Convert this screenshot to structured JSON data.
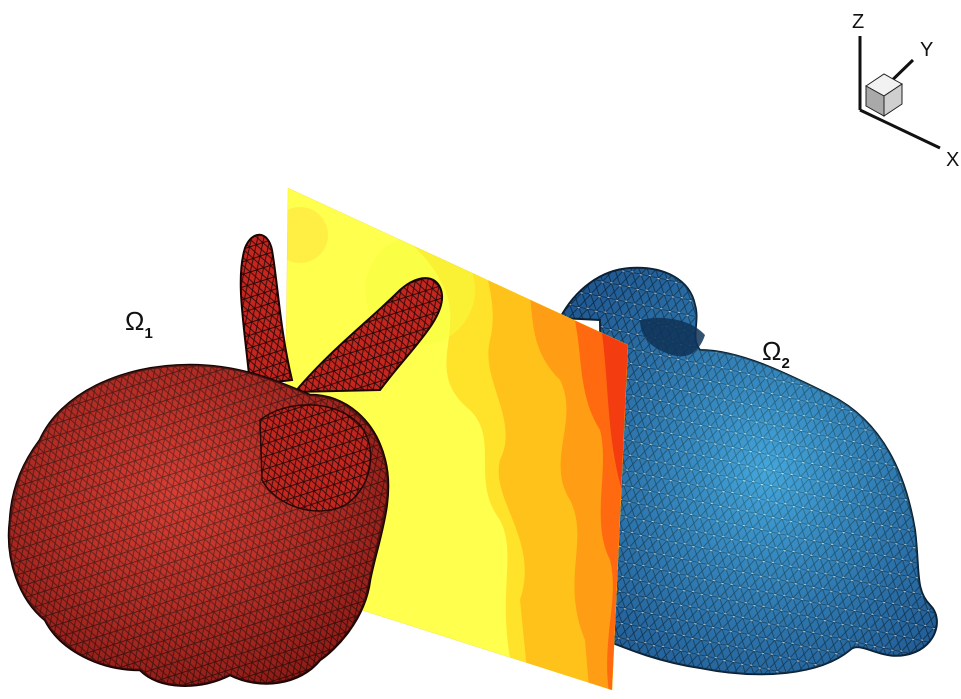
{
  "axes": {
    "x": "X",
    "y": "Y",
    "z": "Z"
  },
  "domains": [
    {
      "symbol": "Ω",
      "subscript": "1",
      "color": "#c82a25"
    },
    {
      "symbol": "Ω",
      "subscript": "2",
      "color": "#2f7ec8"
    }
  ],
  "plane_colors": [
    "#ffff4d",
    "#ffe22a",
    "#ffc21a",
    "#ff9d14",
    "#ff6a10",
    "#f33c10"
  ]
}
